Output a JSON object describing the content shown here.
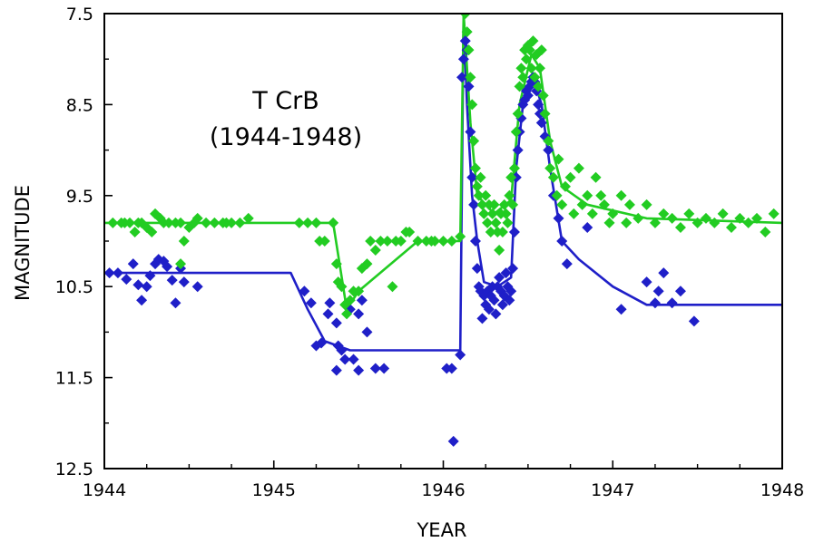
{
  "chart_data": {
    "type": "scatter",
    "title": "T CrB",
    "subtitle": "(1944-1948)",
    "xlabel": "YEAR",
    "ylabel": "MAGNITUDE",
    "xlim": [
      1944,
      1948
    ],
    "ylim": [
      12.5,
      7.5
    ],
    "y_inverted": true,
    "grid": false,
    "x_ticks": [
      1944,
      1945,
      1946,
      1947,
      1948
    ],
    "y_ticks": [
      7.5,
      8.5,
      9.5,
      10.5,
      11.5,
      12.5
    ],
    "x_tick_labels": [
      "1944",
      "1945",
      "1946",
      "1947",
      "1948"
    ],
    "y_tick_labels": [
      "7.5",
      "8.5",
      "9.5",
      "10.5",
      "11.5",
      "12.5"
    ],
    "series": [
      {
        "color": "#1f1fc8",
        "points": [
          [
            1944.03,
            10.35
          ],
          [
            1944.08,
            10.35
          ],
          [
            1944.13,
            10.42
          ],
          [
            1944.17,
            10.25
          ],
          [
            1944.2,
            10.48
          ],
          [
            1944.22,
            10.65
          ],
          [
            1944.25,
            10.5
          ],
          [
            1944.27,
            10.38
          ],
          [
            1944.3,
            10.25
          ],
          [
            1944.32,
            10.2
          ],
          [
            1944.35,
            10.22
          ],
          [
            1944.37,
            10.28
          ],
          [
            1944.4,
            10.43
          ],
          [
            1944.42,
            10.68
          ],
          [
            1944.45,
            10.3
          ],
          [
            1944.47,
            10.45
          ],
          [
            1944.55,
            10.5
          ],
          [
            1945.18,
            10.55
          ],
          [
            1945.22,
            10.68
          ],
          [
            1945.25,
            11.15
          ],
          [
            1945.28,
            11.12
          ],
          [
            1945.32,
            10.8
          ],
          [
            1945.33,
            10.68
          ],
          [
            1945.37,
            10.9
          ],
          [
            1945.38,
            11.15
          ],
          [
            1945.4,
            11.2
          ],
          [
            1945.42,
            11.3
          ],
          [
            1945.45,
            10.75
          ],
          [
            1945.47,
            11.3
          ],
          [
            1945.5,
            10.8
          ],
          [
            1945.52,
            10.65
          ],
          [
            1945.55,
            11.0
          ],
          [
            1945.6,
            11.4
          ],
          [
            1945.65,
            11.4
          ],
          [
            1945.37,
            11.42
          ],
          [
            1945.5,
            11.42
          ],
          [
            1946.02,
            11.4
          ],
          [
            1946.05,
            11.4
          ],
          [
            1946.06,
            12.2
          ],
          [
            1946.1,
            11.25
          ],
          [
            1946.11,
            8.2
          ],
          [
            1946.12,
            8.0
          ],
          [
            1946.13,
            7.8
          ],
          [
            1946.14,
            7.9
          ],
          [
            1946.15,
            8.3
          ],
          [
            1946.16,
            8.8
          ],
          [
            1946.17,
            9.3
          ],
          [
            1946.18,
            9.6
          ],
          [
            1946.19,
            10.0
          ],
          [
            1946.2,
            10.3
          ],
          [
            1946.21,
            10.5
          ],
          [
            1946.22,
            10.55
          ],
          [
            1946.23,
            10.85
          ],
          [
            1946.24,
            10.6
          ],
          [
            1946.25,
            10.7
          ],
          [
            1946.26,
            10.55
          ],
          [
            1946.27,
            10.75
          ],
          [
            1946.28,
            10.6
          ],
          [
            1946.29,
            10.5
          ],
          [
            1946.3,
            10.65
          ],
          [
            1946.31,
            10.8
          ],
          [
            1946.32,
            10.5
          ],
          [
            1946.33,
            10.4
          ],
          [
            1946.34,
            10.55
          ],
          [
            1946.35,
            10.7
          ],
          [
            1946.36,
            10.6
          ],
          [
            1946.37,
            10.35
          ],
          [
            1946.38,
            10.5
          ],
          [
            1946.39,
            10.65
          ],
          [
            1946.4,
            10.55
          ],
          [
            1946.41,
            10.3
          ],
          [
            1946.42,
            9.9
          ],
          [
            1946.43,
            9.3
          ],
          [
            1946.44,
            9.0
          ],
          [
            1946.45,
            8.8
          ],
          [
            1946.46,
            8.65
          ],
          [
            1946.47,
            8.5
          ],
          [
            1946.48,
            8.45
          ],
          [
            1946.49,
            8.35
          ],
          [
            1946.5,
            8.4
          ],
          [
            1946.51,
            8.3
          ],
          [
            1946.52,
            8.25
          ],
          [
            1946.53,
            8.2
          ],
          [
            1946.54,
            8.25
          ],
          [
            1946.55,
            8.35
          ],
          [
            1946.56,
            8.5
          ],
          [
            1946.57,
            8.6
          ],
          [
            1946.58,
            8.7
          ],
          [
            1946.6,
            8.85
          ],
          [
            1946.62,
            9.0
          ],
          [
            1946.65,
            9.5
          ],
          [
            1946.68,
            9.75
          ],
          [
            1946.7,
            10.0
          ],
          [
            1946.73,
            10.25
          ],
          [
            1946.85,
            9.85
          ],
          [
            1947.05,
            10.75
          ],
          [
            1947.2,
            10.45
          ],
          [
            1947.25,
            10.68
          ],
          [
            1947.27,
            10.55
          ],
          [
            1947.3,
            10.35
          ],
          [
            1947.35,
            10.68
          ],
          [
            1947.4,
            10.55
          ],
          [
            1947.48,
            10.88
          ]
        ],
        "trend": [
          [
            1944.0,
            10.35
          ],
          [
            1945.1,
            10.35
          ],
          [
            1945.2,
            10.75
          ],
          [
            1945.3,
            11.1
          ],
          [
            1945.45,
            11.2
          ],
          [
            1946.1,
            11.2
          ],
          [
            1946.12,
            7.5
          ],
          [
            1946.14,
            8.5
          ],
          [
            1946.17,
            9.5
          ],
          [
            1946.2,
            10.0
          ],
          [
            1946.24,
            10.45
          ],
          [
            1946.32,
            10.5
          ],
          [
            1946.4,
            10.4
          ],
          [
            1946.43,
            9.2
          ],
          [
            1946.47,
            8.5
          ],
          [
            1946.53,
            8.2
          ],
          [
            1946.58,
            8.5
          ],
          [
            1946.63,
            9.2
          ],
          [
            1946.7,
            10.0
          ],
          [
            1946.8,
            10.2
          ],
          [
            1947.0,
            10.5
          ],
          [
            1947.2,
            10.7
          ],
          [
            1948.0,
            10.7
          ]
        ]
      },
      {
        "color": "#22cc22",
        "points": [
          [
            1944.05,
            9.8
          ],
          [
            1944.1,
            9.8
          ],
          [
            1944.12,
            9.8
          ],
          [
            1944.15,
            9.8
          ],
          [
            1944.18,
            9.9
          ],
          [
            1944.2,
            9.8
          ],
          [
            1944.22,
            9.8
          ],
          [
            1944.25,
            9.85
          ],
          [
            1944.28,
            9.9
          ],
          [
            1944.3,
            9.7
          ],
          [
            1944.33,
            9.75
          ],
          [
            1944.35,
            9.8
          ],
          [
            1944.38,
            9.8
          ],
          [
            1944.42,
            9.8
          ],
          [
            1944.45,
            9.8
          ],
          [
            1944.47,
            10.0
          ],
          [
            1944.5,
            9.85
          ],
          [
            1944.53,
            9.8
          ],
          [
            1944.55,
            9.75
          ],
          [
            1944.6,
            9.8
          ],
          [
            1944.65,
            9.8
          ],
          [
            1944.7,
            9.8
          ],
          [
            1944.72,
            9.8
          ],
          [
            1944.75,
            9.8
          ],
          [
            1944.8,
            9.8
          ],
          [
            1944.85,
            9.75
          ],
          [
            1944.45,
            10.25
          ],
          [
            1945.15,
            9.8
          ],
          [
            1945.2,
            9.8
          ],
          [
            1945.25,
            9.8
          ],
          [
            1945.27,
            10.0
          ],
          [
            1945.3,
            10.0
          ],
          [
            1945.35,
            9.8
          ],
          [
            1945.37,
            10.25
          ],
          [
            1945.38,
            10.45
          ],
          [
            1945.4,
            10.5
          ],
          [
            1945.42,
            10.7
          ],
          [
            1945.43,
            10.8
          ],
          [
            1945.45,
            10.65
          ],
          [
            1945.47,
            10.55
          ],
          [
            1945.5,
            10.55
          ],
          [
            1945.52,
            10.3
          ],
          [
            1945.55,
            10.25
          ],
          [
            1945.57,
            10.0
          ],
          [
            1945.6,
            10.1
          ],
          [
            1945.63,
            10.0
          ],
          [
            1945.67,
            10.0
          ],
          [
            1945.7,
            10.5
          ],
          [
            1945.72,
            10.0
          ],
          [
            1945.75,
            10.0
          ],
          [
            1945.78,
            9.9
          ],
          [
            1945.8,
            9.9
          ],
          [
            1945.85,
            10.0
          ],
          [
            1945.9,
            10.0
          ],
          [
            1945.93,
            10.0
          ],
          [
            1945.95,
            10.0
          ],
          [
            1946.0,
            10.0
          ],
          [
            1946.05,
            10.0
          ],
          [
            1946.1,
            9.95
          ],
          [
            1946.13,
            7.5
          ],
          [
            1946.14,
            7.7
          ],
          [
            1946.15,
            7.9
          ],
          [
            1946.16,
            8.2
          ],
          [
            1946.17,
            8.5
          ],
          [
            1946.18,
            8.9
          ],
          [
            1946.19,
            9.2
          ],
          [
            1946.2,
            9.4
          ],
          [
            1946.21,
            9.5
          ],
          [
            1946.22,
            9.3
          ],
          [
            1946.23,
            9.6
          ],
          [
            1946.24,
            9.7
          ],
          [
            1946.25,
            9.5
          ],
          [
            1946.26,
            9.8
          ],
          [
            1946.27,
            9.6
          ],
          [
            1946.28,
            9.9
          ],
          [
            1946.29,
            9.7
          ],
          [
            1946.3,
            9.6
          ],
          [
            1946.31,
            9.8
          ],
          [
            1946.32,
            9.9
          ],
          [
            1946.33,
            10.1
          ],
          [
            1946.34,
            9.7
          ],
          [
            1946.35,
            9.9
          ],
          [
            1946.36,
            9.6
          ],
          [
            1946.37,
            9.7
          ],
          [
            1946.38,
            9.8
          ],
          [
            1946.39,
            9.5
          ],
          [
            1946.4,
            9.3
          ],
          [
            1946.41,
            9.6
          ],
          [
            1946.42,
            9.2
          ],
          [
            1946.43,
            8.8
          ],
          [
            1946.44,
            8.6
          ],
          [
            1946.45,
            8.3
          ],
          [
            1946.46,
            8.1
          ],
          [
            1946.47,
            8.2
          ],
          [
            1946.48,
            7.9
          ],
          [
            1946.49,
            8.0
          ],
          [
            1946.5,
            7.85
          ],
          [
            1946.51,
            7.9
          ],
          [
            1946.52,
            8.1
          ],
          [
            1946.53,
            7.8
          ],
          [
            1946.54,
            8.2
          ],
          [
            1946.55,
            7.95
          ],
          [
            1946.56,
            8.3
          ],
          [
            1946.57,
            8.1
          ],
          [
            1946.58,
            7.9
          ],
          [
            1946.59,
            8.4
          ],
          [
            1946.6,
            8.6
          ],
          [
            1946.62,
            8.9
          ],
          [
            1946.63,
            9.2
          ],
          [
            1946.65,
            9.3
          ],
          [
            1946.67,
            9.5
          ],
          [
            1946.68,
            9.1
          ],
          [
            1946.7,
            9.6
          ],
          [
            1946.72,
            9.4
          ],
          [
            1946.75,
            9.3
          ],
          [
            1946.77,
            9.7
          ],
          [
            1946.8,
            9.2
          ],
          [
            1946.82,
            9.6
          ],
          [
            1946.85,
            9.5
          ],
          [
            1946.88,
            9.7
          ],
          [
            1946.9,
            9.3
          ],
          [
            1946.93,
            9.5
          ],
          [
            1946.95,
            9.6
          ],
          [
            1946.98,
            9.8
          ],
          [
            1947.0,
            9.7
          ],
          [
            1947.05,
            9.5
          ],
          [
            1947.08,
            9.8
          ],
          [
            1947.1,
            9.6
          ],
          [
            1947.15,
            9.75
          ],
          [
            1947.2,
            9.6
          ],
          [
            1947.25,
            9.8
          ],
          [
            1947.3,
            9.7
          ],
          [
            1947.35,
            9.75
          ],
          [
            1947.4,
            9.85
          ],
          [
            1947.45,
            9.7
          ],
          [
            1947.5,
            9.8
          ],
          [
            1947.55,
            9.75
          ],
          [
            1947.6,
            9.8
          ],
          [
            1947.65,
            9.7
          ],
          [
            1947.7,
            9.85
          ],
          [
            1947.75,
            9.75
          ],
          [
            1947.8,
            9.8
          ],
          [
            1947.85,
            9.75
          ],
          [
            1947.9,
            9.9
          ],
          [
            1947.95,
            9.7
          ]
        ],
        "trend": [
          [
            1944.0,
            9.8
          ],
          [
            1945.35,
            9.8
          ],
          [
            1945.43,
            10.75
          ],
          [
            1945.5,
            10.55
          ],
          [
            1945.85,
            10.0
          ],
          [
            1946.1,
            10.0
          ],
          [
            1946.12,
            7.5
          ],
          [
            1946.16,
            8.7
          ],
          [
            1946.2,
            9.5
          ],
          [
            1946.3,
            9.7
          ],
          [
            1946.4,
            9.55
          ],
          [
            1946.45,
            8.5
          ],
          [
            1946.52,
            7.95
          ],
          [
            1946.57,
            8.1
          ],
          [
            1946.63,
            8.9
          ],
          [
            1946.7,
            9.4
          ],
          [
            1946.85,
            9.6
          ],
          [
            1947.2,
            9.75
          ],
          [
            1948.0,
            9.8
          ]
        ]
      }
    ]
  }
}
